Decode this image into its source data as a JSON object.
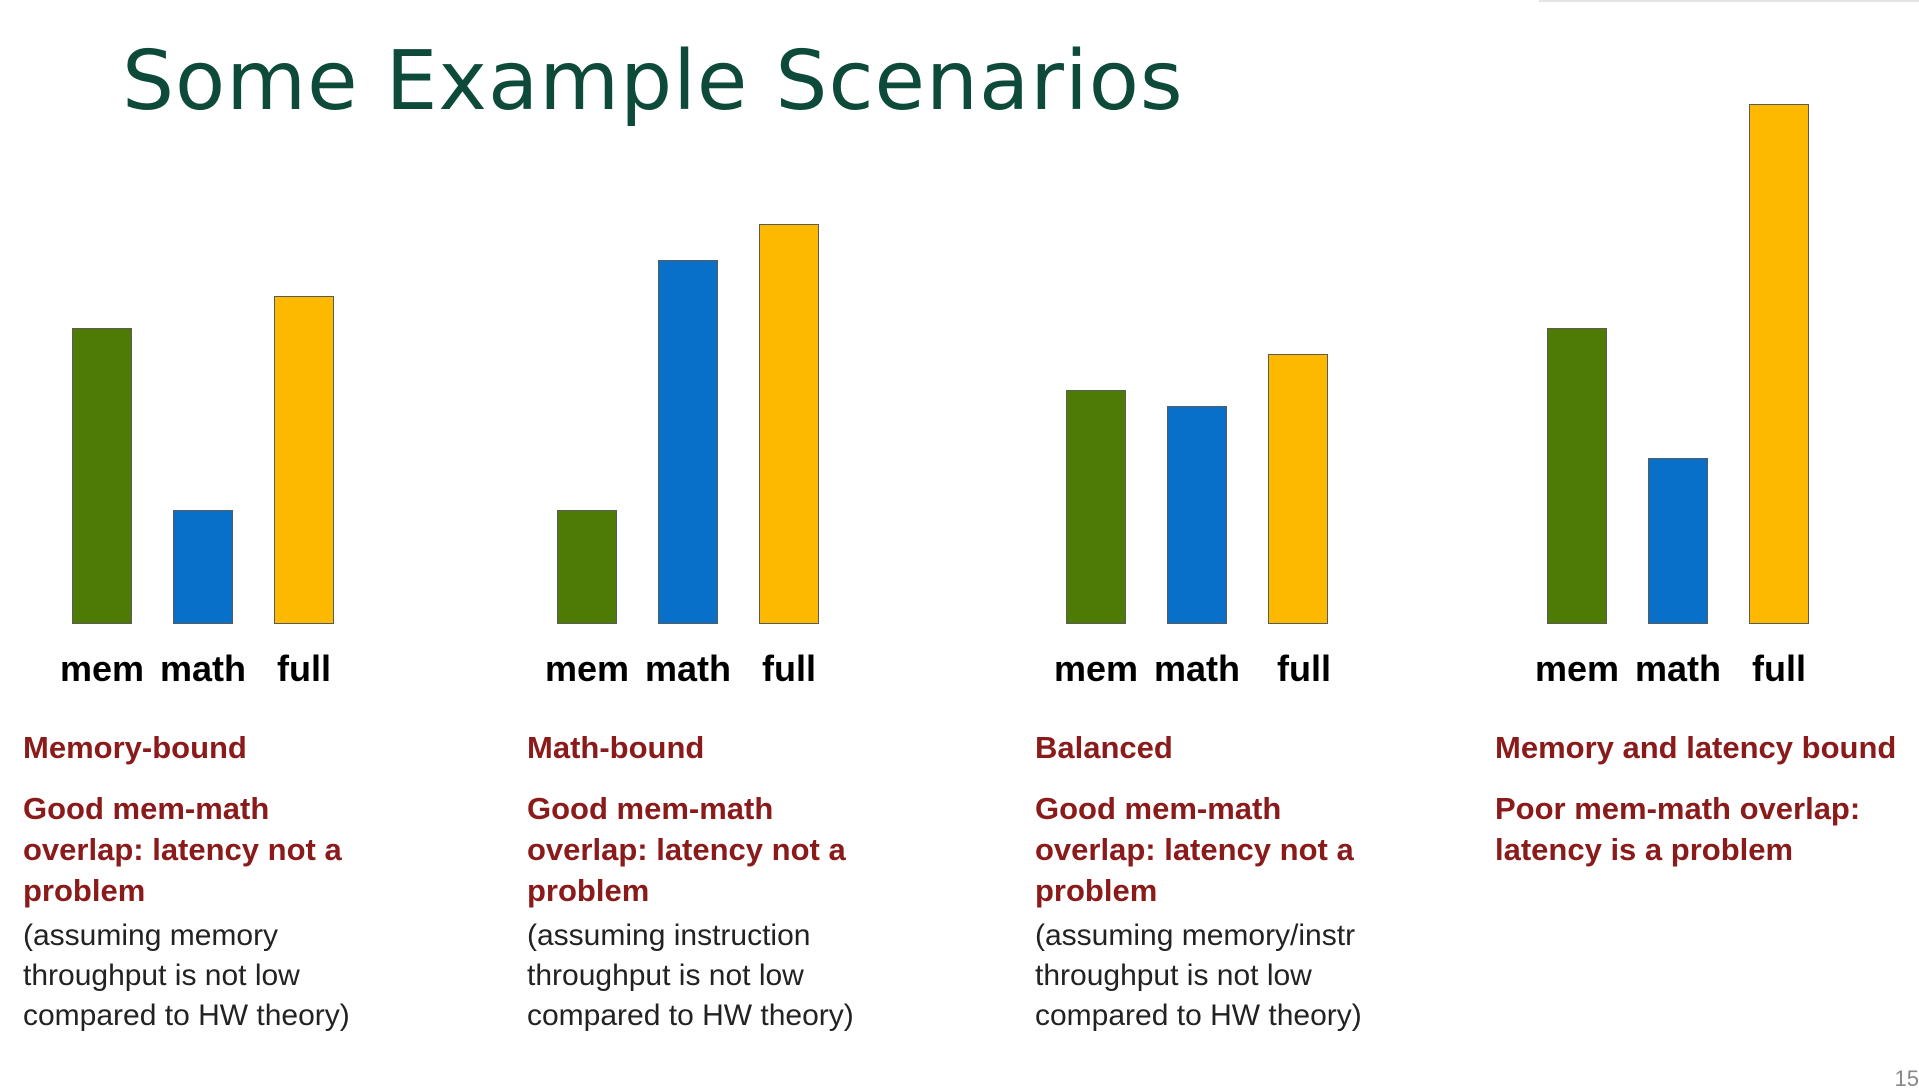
{
  "slide": {
    "title": "Some Example Scenarios",
    "page_number": "15"
  },
  "panels": [
    {
      "heading": "Memory-bound",
      "verdict": "Good mem-math\noverlap: latency not a\nproblem",
      "note": "(assuming memory\nthroughput is not low\ncompared to HW theory)"
    },
    {
      "heading": "Math-bound",
      "verdict": "Good mem-math\noverlap: latency not a\nproblem",
      "note": "(assuming instruction\nthroughput is not low\ncompared to HW theory)"
    },
    {
      "heading": "Balanced",
      "verdict": "Good mem-math\noverlap: latency not a\nproblem",
      "note": "(assuming memory/instr\nthroughput is not low\ncompared to HW theory)"
    },
    {
      "heading": "Memory and latency bound",
      "verdict": "Poor mem-math overlap:\nlatency is a problem",
      "note": ""
    }
  ],
  "chart_data": [
    {
      "type": "bar",
      "title": "",
      "categories": [
        "mem",
        "math",
        "full"
      ],
      "values": [
        0.57,
        0.22,
        0.63
      ],
      "colors": [
        "#4e7a06",
        "#0870c8",
        "#fdb900"
      ],
      "ylim": [
        0,
        1
      ],
      "grid": false,
      "legend": "none"
    },
    {
      "type": "bar",
      "title": "",
      "categories": [
        "mem",
        "math",
        "full"
      ],
      "values": [
        0.22,
        0.7,
        0.77
      ],
      "colors": [
        "#4e7a06",
        "#0870c8",
        "#fdb900"
      ],
      "ylim": [
        0,
        1
      ],
      "grid": false,
      "legend": "none"
    },
    {
      "type": "bar",
      "title": "",
      "categories": [
        "mem",
        "math",
        "full"
      ],
      "values": [
        0.45,
        0.42,
        0.52
      ],
      "colors": [
        "#4e7a06",
        "#0870c8",
        "#fdb900"
      ],
      "ylim": [
        0,
        1
      ],
      "grid": false,
      "legend": "none"
    },
    {
      "type": "bar",
      "title": "",
      "categories": [
        "mem",
        "math",
        "full"
      ],
      "values": [
        0.57,
        0.32,
        1.0
      ],
      "colors": [
        "#4e7a06",
        "#0870c8",
        "#fdb900"
      ],
      "ylim": [
        0,
        1
      ],
      "grid": false,
      "legend": "none"
    }
  ]
}
